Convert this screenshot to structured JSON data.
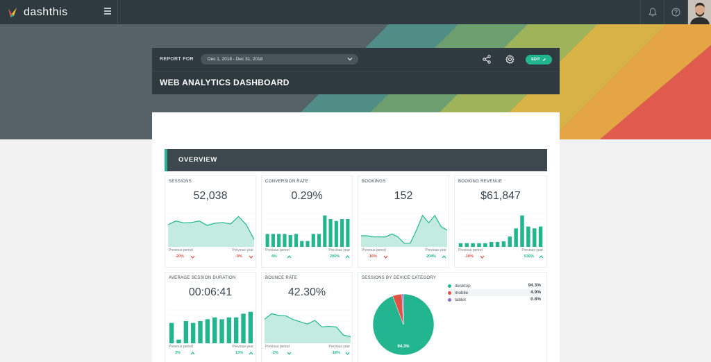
{
  "app": {
    "name": "dashthis"
  },
  "report": {
    "label": "REPORT FOR",
    "date_range": "Dec 1, 2018 - Dec 31, 2018",
    "edit_label": "EDIT",
    "title": "WEB ANALYTICS DASHBOARD"
  },
  "section": {
    "title": "OVERVIEW"
  },
  "colors": {
    "accent": "#22b58f",
    "negative": "#e05246",
    "nav": "#2f3a40"
  },
  "widgets": {
    "sessions": {
      "title": "SESSIONS",
      "value": "52,038",
      "prev_period_label": "Previous period",
      "prev_year_label": "Previous year",
      "prev_period_change": "-20%",
      "prev_year_change": "-0%",
      "chart_data": {
        "type": "area",
        "values": [
          6,
          7,
          6.5,
          6.6,
          7,
          5.8,
          6.4,
          6.6,
          6.2,
          8.2,
          6,
          2
        ]
      }
    },
    "conversion_rate": {
      "title": "CONVERSION RATE",
      "value": "0.29%",
      "prev_period_label": "Previous period",
      "prev_year_label": "Previous year",
      "prev_period_change": "4%",
      "prev_year_change": "205%",
      "chart_data": {
        "type": "bar",
        "values": [
          3.5,
          3.5,
          3.5,
          3.5,
          3.2,
          3.5,
          1.6,
          1.6,
          3.5,
          3.5,
          8.5,
          7.5,
          7,
          7.5,
          7.5
        ]
      }
    },
    "bookings": {
      "title": "BOOKINGS",
      "value": "152",
      "prev_period_label": "Previous period",
      "prev_year_label": "Previous year",
      "prev_period_change": "-16%",
      "prev_year_change": "204%",
      "chart_data": {
        "type": "area",
        "values": [
          3,
          3,
          2.7,
          2.7,
          2.7,
          3.5,
          2.7,
          1,
          1,
          4.5,
          8.5,
          6.5,
          8.5,
          5.5,
          4.5
        ]
      }
    },
    "booking_revenue": {
      "title": "BOOKING REVENUE",
      "value": "$61,847",
      "prev_period_label": "Previous period",
      "prev_year_label": "Previous year",
      "prev_period_change": "-10%",
      "prev_year_change": "536%",
      "chart_data": {
        "type": "bar",
        "values": [
          1,
          1,
          1,
          1,
          1,
          1.3,
          1.3,
          1.5,
          2.8,
          5,
          8.5,
          5.5,
          5,
          5.5
        ]
      }
    },
    "avg_session_duration": {
      "title": "AVERAGE SESSION DURATION",
      "value": "00:06:41",
      "prev_period_label": "Previous period",
      "prev_year_label": "Previous year",
      "prev_period_change": "3%",
      "prev_year_change": "13%",
      "chart_data": {
        "type": "bar",
        "values": [
          5.5,
          1,
          6,
          5.5,
          6,
          6.5,
          7,
          6.5,
          7,
          7,
          8,
          8.5
        ]
      }
    },
    "bounce_rate": {
      "title": "BOUNCE RATE",
      "value": "42.30%",
      "prev_period_label": "Previous period",
      "prev_year_label": "Previous year",
      "prev_period_change": "-2%",
      "prev_year_change": "-18%",
      "chart_data": {
        "type": "area",
        "values": [
          6.5,
          8,
          7.5,
          7.4,
          6.4,
          5.8,
          5.2,
          6.2,
          4.4,
          4.6,
          4.4,
          2.2,
          1.8
        ]
      }
    },
    "device_category": {
      "title": "SESSIONS BY DEVICE CATEGORY",
      "pie_label": "94.3%",
      "chart_data": {
        "type": "pie",
        "slices": [
          {
            "name": "desktop",
            "value": 94.3,
            "label": "94.3%",
            "color": "#22b58f"
          },
          {
            "name": "mobile",
            "value": 4.9,
            "label": "4.9%",
            "color": "#e05246"
          },
          {
            "name": "tablet",
            "value": 0.8,
            "label": "0.8%",
            "color": "#8e6cd6"
          }
        ]
      }
    }
  }
}
